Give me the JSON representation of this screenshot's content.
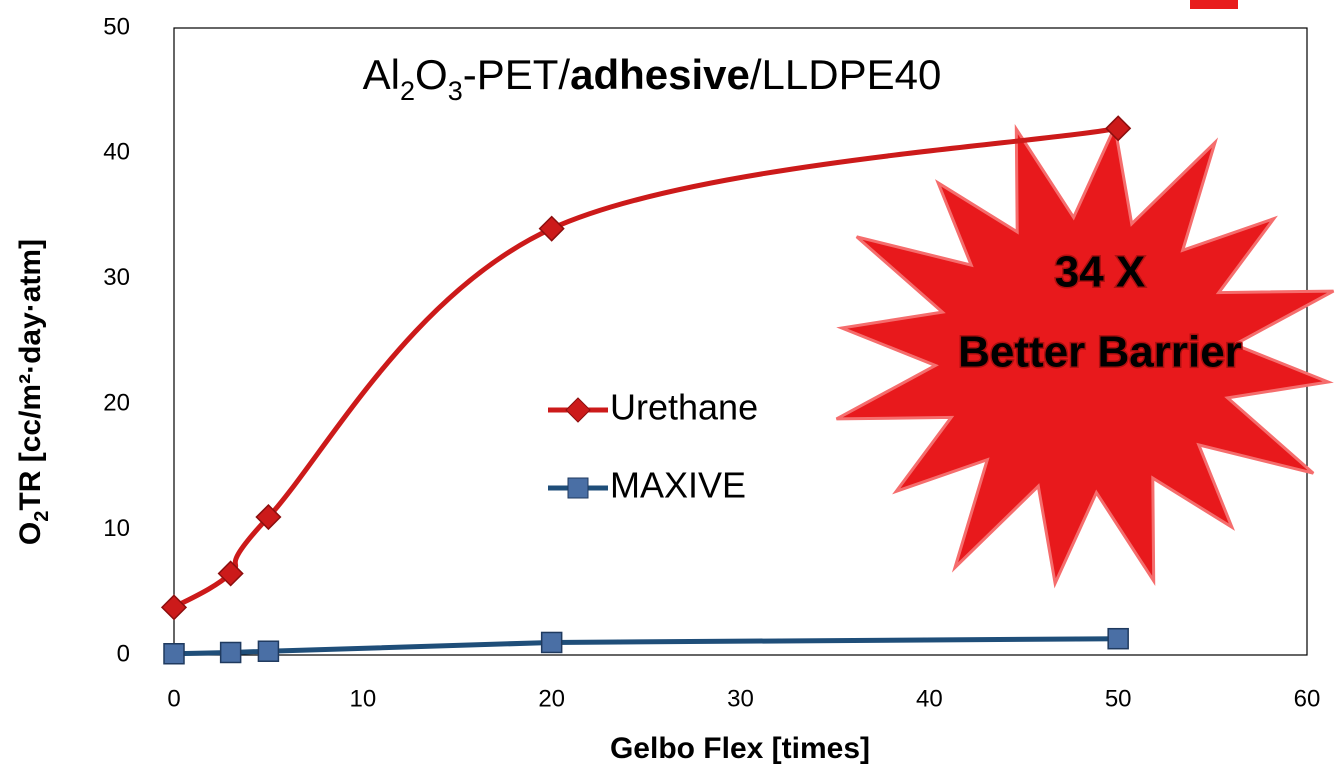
{
  "chart_data": {
    "type": "line",
    "annotation": [
      {
        "text": "Al"
      },
      {
        "text": "2",
        "sub": true
      },
      {
        "text": "O"
      },
      {
        "text": "3",
        "sub": true
      },
      {
        "text": "-PET/"
      },
      {
        "text": "adhesive",
        "bold": true
      },
      {
        "text": "/LLDPE40"
      }
    ],
    "xlabel": "Gelbo Flex [times]",
    "ylabel": [
      {
        "text": "O"
      },
      {
        "text": "2",
        "sub": true
      },
      {
        "text": "TR [cc/m²·day·atm]"
      }
    ],
    "x": [
      0,
      3,
      5,
      20,
      50
    ],
    "series": [
      {
        "name": "Urethane",
        "color": "#cc1a1a",
        "marker": "diamond",
        "smooth": true,
        "values": [
          3.8,
          6.5,
          11,
          34,
          42
        ]
      },
      {
        "name": "MAXIVE",
        "color": "#1f4e79",
        "marker": "square",
        "marker_color": "#4a6fa5",
        "smooth": false,
        "values": [
          0.1,
          0.2,
          0.3,
          1.0,
          1.3
        ]
      }
    ],
    "xlim": [
      0,
      60
    ],
    "xticks": [
      0,
      10,
      20,
      30,
      40,
      50,
      60
    ],
    "ylim": [
      0,
      50
    ],
    "yticks": [
      0,
      10,
      20,
      30,
      40,
      50
    ],
    "grid": false,
    "callout": [
      "34 X",
      "Better Barrier"
    ]
  }
}
